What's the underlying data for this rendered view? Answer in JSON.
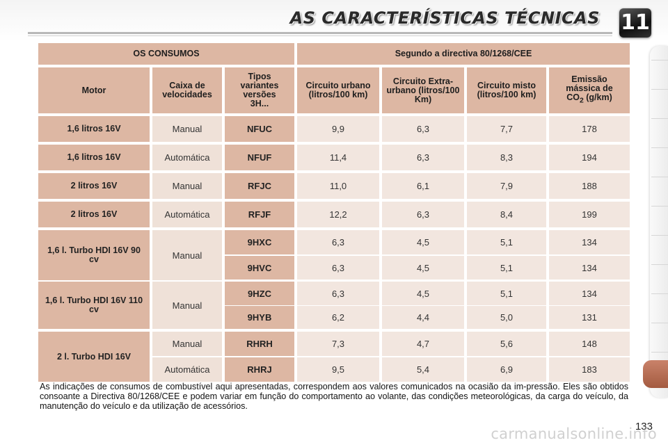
{
  "header": {
    "title": "AS CARACTERÍSTICAS TÉCNICAS",
    "chapter": "11"
  },
  "table": {
    "section_left": "OS CONSUMOS",
    "section_right": "Segundo a directiva 80/1268/CEE",
    "columns": {
      "motor": "Motor",
      "gearbox": "Caixa de velocidades",
      "variants": "Tipos variantes versões 3H...",
      "urban": "Circuito urbano (litros/100 km)",
      "extra_urban": "Circuito Extra-urbano (litros/100 Km)",
      "mixed": "Circuito misto (litros/100 km)",
      "co2": "Emissão mássica de CO",
      "co2_sub": "2",
      "co2_unit": " (g/km)"
    },
    "groups": [
      {
        "motor": "1,6 litros 16V",
        "gearbox": "Manual"
      },
      {
        "motor": "1,6 litros 16V",
        "gearbox": "Automática"
      },
      {
        "motor": "2 litros 16V",
        "gearbox": "Manual"
      },
      {
        "motor": "2 litros 16V",
        "gearbox": "Automática"
      },
      {
        "motor": "1,6 l. Turbo HDI 16V 90 cv",
        "gearbox": "Manual"
      },
      {
        "motor": "1,6 l. Turbo HDI 16V 110 cv",
        "gearbox": "Manual"
      },
      {
        "motor": "2 l. Turbo HDI 16V",
        "gearbox": ""
      }
    ],
    "rows": [
      {
        "gearbox": "",
        "variant": "NFUC",
        "urban": "9,9",
        "extra": "6,3",
        "mixed": "7,7",
        "co2": "178"
      },
      {
        "gearbox": "",
        "variant": "NFUF",
        "urban": "11,4",
        "extra": "6,3",
        "mixed": "8,3",
        "co2": "194"
      },
      {
        "gearbox": "",
        "variant": "RFJC",
        "urban": "11,0",
        "extra": "6,1",
        "mixed": "7,9",
        "co2": "188"
      },
      {
        "gearbox": "",
        "variant": "RFJF",
        "urban": "12,2",
        "extra": "6,3",
        "mixed": "8,4",
        "co2": "199"
      },
      {
        "gearbox": "",
        "variant": "9HXC",
        "urban": "6,3",
        "extra": "4,5",
        "mixed": "5,1",
        "co2": "134"
      },
      {
        "gearbox": "",
        "variant": "9HVC",
        "urban": "6,3",
        "extra": "4,5",
        "mixed": "5,1",
        "co2": "134"
      },
      {
        "gearbox": "",
        "variant": "9HZC",
        "urban": "6,3",
        "extra": "4,5",
        "mixed": "5,1",
        "co2": "134"
      },
      {
        "gearbox": "",
        "variant": "9HYB",
        "urban": "6,2",
        "extra": "4,4",
        "mixed": "5,0",
        "co2": "131"
      },
      {
        "gearbox": "Manual",
        "variant": "RHRH",
        "urban": "7,3",
        "extra": "4,7",
        "mixed": "5,6",
        "co2": "148"
      },
      {
        "gearbox": "Automática",
        "variant": "RHRJ",
        "urban": "9,5",
        "extra": "5,4",
        "mixed": "6,9",
        "co2": "183"
      }
    ]
  },
  "footnote": "As indicações de consumos de combustível aqui apresentadas, correspondem aos valores comunicados na ocasião da im-pressão. Eles são obtidos consoante a Directiva 80/1268/CEE e podem variar em função do comportamento ao volante, das condições meteorológicas, da carga do veículo, da manutenção do veículo e da utilização de acessórios.",
  "page_number": "133",
  "watermark": "carmanualsonline.info",
  "colors": {
    "header_cell": "#ddb7a3",
    "value_cell": "#f2e6df",
    "gearbox_cell": "#efe1d8",
    "tab_active": "#b56a4e"
  }
}
